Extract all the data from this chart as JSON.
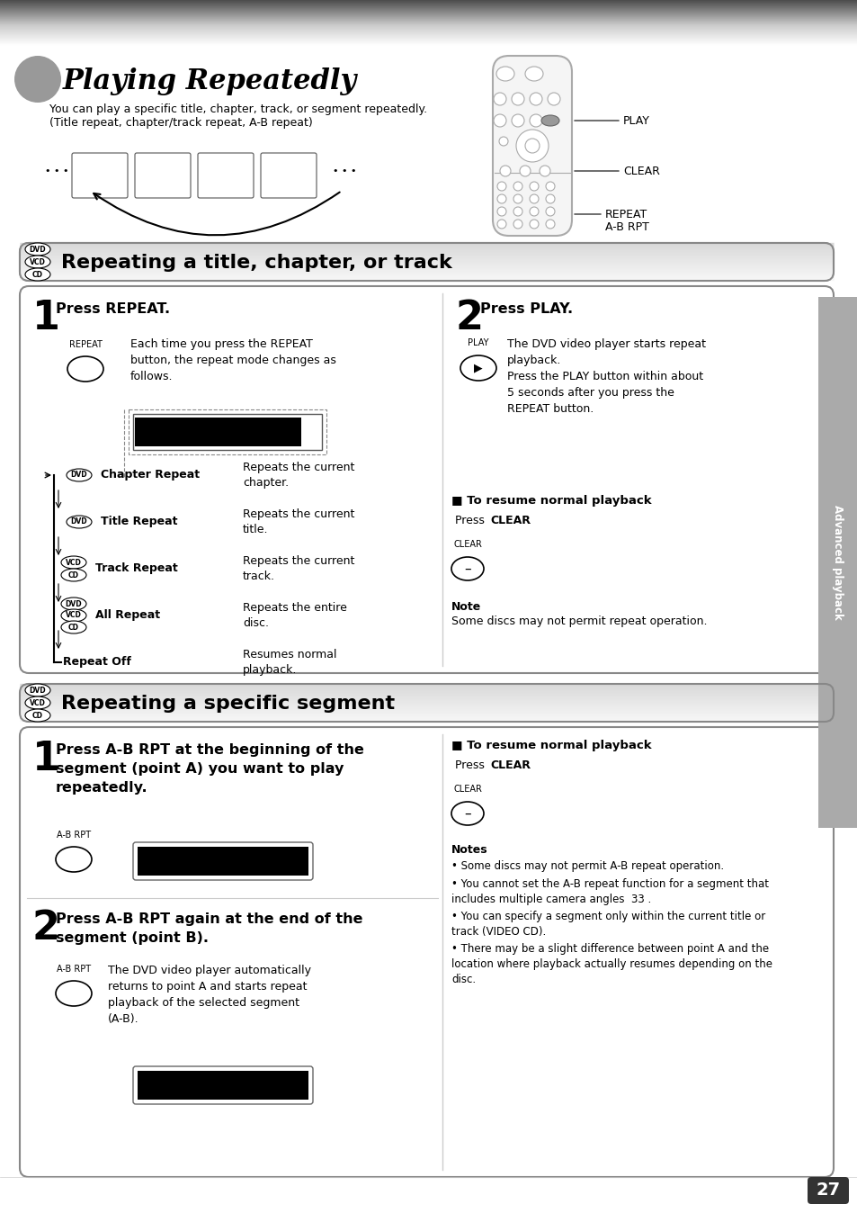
{
  "title": "Playing Repeatedly",
  "subtitle1": "You can play a specific title, chapter, track, or segment repeatedly.",
  "subtitle2": "(Title repeat, chapter/track repeat, A-B repeat)",
  "section1_title": "Repeating a title, chapter, or track",
  "section2_title": "Repeating a specific segment",
  "page_number": "27",
  "sidebar_text": "Advanced playback",
  "bg_color": "#ffffff",
  "step1_repeat_title": "Press REPEAT.",
  "step1_repeat_body": "Each time you press the REPEAT\nbutton, the repeat mode changes as\nfollows.",
  "step2_repeat_title": "Press PLAY.",
  "step2_repeat_body": "The DVD video player starts repeat\nplayback.\nPress the PLAY button within about\n5 seconds after you press the\nREPEAT button.",
  "resume_normal": "To resume normal playback",
  "press_clear_text": "Press ",
  "clear_bold": "CLEAR",
  "note_title": "Note",
  "note_body": "Some discs may not permit repeat operation.",
  "chapter_repeat": "Chapter Repeat",
  "chapter_repeat_desc": "Repeats the current\nchapter.",
  "title_repeat": "Title Repeat",
  "title_repeat_desc": "Repeats the current\ntitle.",
  "track_repeat": "Track Repeat",
  "track_repeat_desc": "Repeats the current\ntrack.",
  "all_repeat": "All Repeat",
  "all_repeat_desc": "Repeats the entire\ndisc.",
  "repeat_off": "Repeat Off",
  "repeat_off_desc": "Resumes normal\nplayback.",
  "step1_ab_title_bold": "Press A-B RPT at the beginning of the\nsegment (point A) you want to play\nrepeatedly.",
  "step2_ab_title_bold": "Press A-B RPT again at the end of the\nsegment (point B).",
  "step2_ab_body": "The DVD video player automatically\nreturns to point A and starts repeat\nplayback of the selected segment\n(A-B).",
  "notes_ab_title": "Notes",
  "notes_ab_bullets": [
    "Some discs may not permit A-B repeat operation.",
    "You cannot set the A-B repeat function for a segment that\nincludes multiple camera angles  33 .",
    "You can specify a segment only within the current title or\ntrack (VIDEO CD).",
    "There may be a slight difference between point A and the\nlocation where playback actually resumes depending on the\ndisc."
  ],
  "play_label": "PLAY",
  "clear_label": "CLEAR",
  "repeat_label": "REPEAT",
  "ab_rpt_label": "A-B RPT"
}
